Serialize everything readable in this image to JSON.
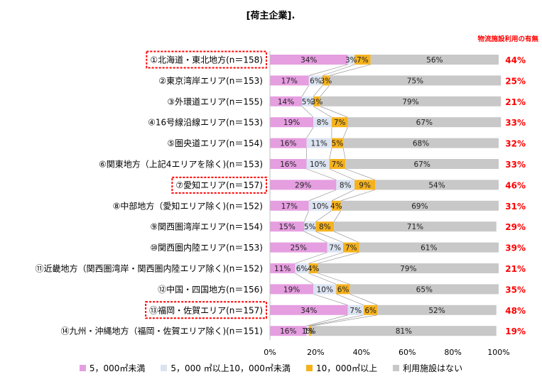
{
  "chart_data": {
    "type": "bar",
    "stacked": true,
    "orientation": "horizontal",
    "title": "[荷主企業].",
    "side_header": "物流施設利用の有無",
    "categories": [
      "①北海道・東北地方(n＝158)",
      "②東京湾岸エリア(n＝153)",
      "③外環道エリア(n＝155)",
      "④16号線沿線エリア(n＝153)",
      "⑤圏央道エリア(n＝154)",
      "⑥関東地方（上記4エリアを除く)(n＝153)",
      "⑦愛知エリア(n＝157)",
      "⑧中部地方（愛知エリア除く)(n＝152)",
      "⑨関西圏湾岸エリア(n＝154)",
      "⑩関西圏内陸エリア(n＝153)",
      "⑪近畿地方（関西圏湾岸・関西圏内陸エリア除く)(n＝152)",
      "⑫中国・四国地方(n＝156)",
      "⑬福岡・佐賀エリア(n＝157)",
      "⑭九州・沖縄地方（福岡・佐賀エリア除く)(n＝151)"
    ],
    "highlighted_categories": [
      0,
      6,
      12
    ],
    "series": [
      {
        "name": "5，000㎡未満",
        "color": "#e59ee0",
        "values": [
          34,
          17,
          14,
          19,
          16,
          16,
          29,
          17,
          15,
          25,
          11,
          19,
          34,
          16
        ]
      },
      {
        "name": "5，000 ㎡以上10，000㎡未満",
        "color": "#dbe3f1",
        "values": [
          3,
          6,
          5,
          8,
          11,
          10,
          8,
          10,
          5,
          7,
          6,
          10,
          7,
          1
        ]
      },
      {
        "name": "10，000㎡以上",
        "color": "#f5b21e",
        "values": [
          7,
          3,
          3,
          7,
          5,
          7,
          9,
          4,
          8,
          7,
          4,
          6,
          6,
          1
        ]
      },
      {
        "name": "利用施設はない",
        "color": "#c8c8c8",
        "values": [
          56,
          75,
          79,
          67,
          68,
          67,
          54,
          69,
          71,
          61,
          79,
          65,
          52,
          81
        ]
      }
    ],
    "usage_totals": [
      "44%",
      "25%",
      "21%",
      "33%",
      "32%",
      "33%",
      "46%",
      "31%",
      "29%",
      "39%",
      "21%",
      "35%",
      "48%",
      "19%"
    ],
    "xlim": [
      0,
      100
    ],
    "x_ticks": [
      "0%",
      "20%",
      "40%",
      "60%",
      "80%",
      "100%"
    ],
    "legend_position": "bottom",
    "grid": false
  }
}
